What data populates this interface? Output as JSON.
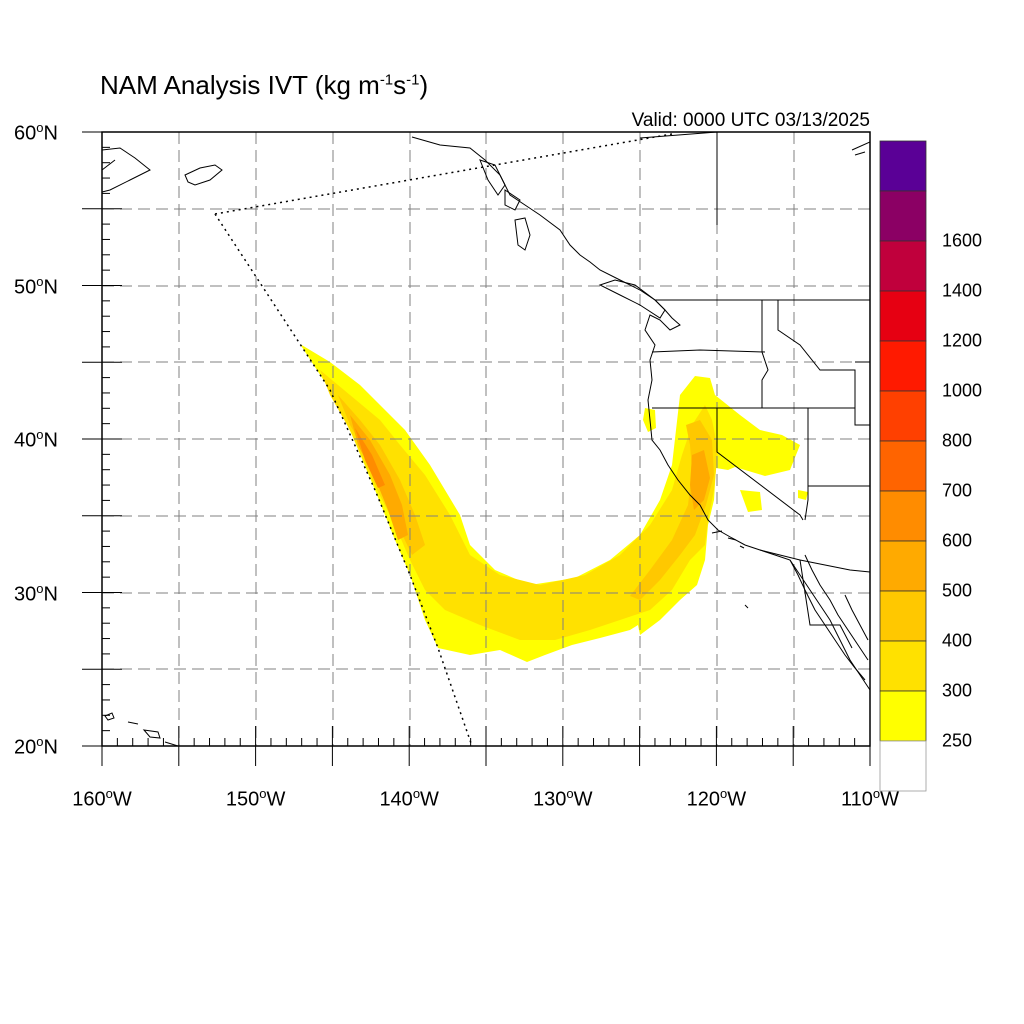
{
  "title": {
    "main": "NAM Analysis IVT (kg m",
    "exp1": "-1",
    "mid": "s",
    "exp2": "-1",
    "close": ")"
  },
  "valid_text": "Valid: 0000 UTC 03/13/2025",
  "map": {
    "lat_labels": [
      {
        "value": "60",
        "suffix": "N"
      },
      {
        "value": "50",
        "suffix": "N"
      },
      {
        "value": "40",
        "suffix": "N"
      },
      {
        "value": "30",
        "suffix": "N"
      },
      {
        "value": "20",
        "suffix": "N"
      }
    ],
    "lon_labels": [
      {
        "value": "160",
        "suffix": "W"
      },
      {
        "value": "150",
        "suffix": "W"
      },
      {
        "value": "140",
        "suffix": "W"
      },
      {
        "value": "130",
        "suffix": "W"
      },
      {
        "value": "120",
        "suffix": "W"
      },
      {
        "value": "110",
        "suffix": "W"
      }
    ],
    "extent": {
      "lon_min": -160,
      "lon_max": -110,
      "lat_min": 20,
      "lat_max": 60
    }
  },
  "colorbar": {
    "labels": [
      "250",
      "300",
      "400",
      "500",
      "600",
      "700",
      "800",
      "1000",
      "1200",
      "1400",
      "1600"
    ],
    "colors": [
      "#ffff00",
      "#ffe100",
      "#ffc800",
      "#ffaa00",
      "#ff8c00",
      "#ff6400",
      "#ff4000",
      "#ff1a00",
      "#e60012",
      "#c0003c",
      "#8b0064",
      "#5a0096"
    ],
    "bottom_color": "#ffffff"
  }
}
